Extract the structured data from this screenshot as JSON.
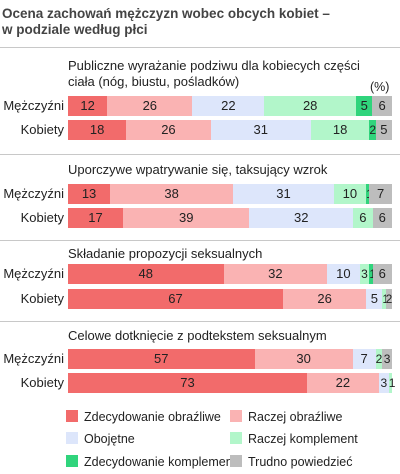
{
  "title": "Ocena zachowań mężczyzn wobec obcych kobiet –\nw podziale według płci",
  "unit_label": "(%)",
  "colors": {
    "Zdecydowanie obraźliwe": "#f26b6b",
    "Raczej obraźliwe": "#fab3b3",
    "Obojętne": "#dde6fb",
    "Raczej komplement": "#b2f6ca",
    "Zdecydowanie komplement": "#30d47c",
    "Trudno powiedzieć": "#bdbdbd"
  },
  "chart_data": {
    "type": "bar",
    "orientation": "horizontal",
    "stacked": true,
    "percent_total": 100,
    "categories_order": [
      "Zdecydowanie obraźliwe",
      "Raczej obraźliwe",
      "Obojętne",
      "Raczej komplement",
      "Zdecydowanie komplement",
      "Trudno powiedzieć"
    ],
    "legend": [
      "Zdecydowanie obraźliwe",
      "Raczej obraźliwe",
      "Obojętne",
      "Raczej komplement",
      "Zdecydowanie komplement",
      "Trudno powiedzieć"
    ],
    "legend_position": "bottom",
    "groups": [
      {
        "title": "Publiczne wyrażanie podziwu dla kobiecych części\nciała (nóg, biustu, pośladków)",
        "rows": [
          {
            "label": "Mężczyźni",
            "values": [
              12,
              26,
              22,
              28,
              5,
              6
            ]
          },
          {
            "label": "Kobiety",
            "values": [
              18,
              26,
              31,
              18,
              2,
              5
            ]
          }
        ]
      },
      {
        "title": "Uporczywe wpatrywanie się, taksujący wzrok",
        "rows": [
          {
            "label": "Mężczyźni",
            "values": [
              13,
              38,
              31,
              10,
              1,
              7
            ]
          },
          {
            "label": "Kobiety",
            "values": [
              17,
              39,
              32,
              6,
              0,
              6
            ]
          }
        ]
      },
      {
        "title": "Składanie propozycji seksualnych",
        "rows": [
          {
            "label": "Mężczyźni",
            "values": [
              48,
              32,
              10,
              3,
              1,
              6
            ]
          },
          {
            "label": "Kobiety",
            "values": [
              67,
              26,
              5,
              1,
              0,
              2
            ]
          }
        ]
      },
      {
        "title": "Celowe dotknięcie z podtekstem seksualnym",
        "rows": [
          {
            "label": "Mężczyźni",
            "values": [
              57,
              30,
              7,
              2,
              0,
              3
            ]
          },
          {
            "label": "Kobiety",
            "values": [
              73,
              22,
              3,
              1,
              0,
              0
            ]
          }
        ]
      }
    ]
  }
}
